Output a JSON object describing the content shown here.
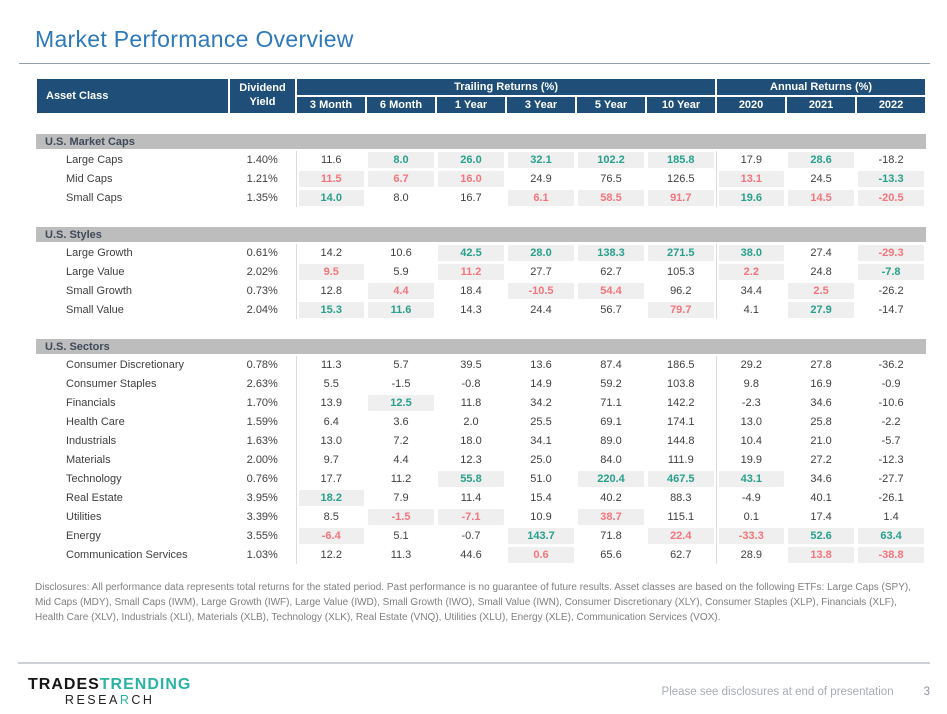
{
  "title": "Market Performance Overview",
  "table": {
    "header": {
      "asset_class": "Asset Class",
      "dividend_yield": "Dividend Yield",
      "trailing_group": "Trailing Returns (%)",
      "annual_group": "Annual Returns (%)",
      "cols": [
        "3 Month",
        "6 Month",
        "1 Year",
        "3 Year",
        "5 Year",
        "10 Year",
        "2020",
        "2021",
        "2022"
      ]
    },
    "legend": {
      "highlight_bg": "#EFEFEF",
      "positive_color": "#27A08C",
      "negative_color": "#F4757D",
      "header_bg": "#1F4E78",
      "section_bg": "#BDBDBD"
    },
    "sections": [
      {
        "name": "U.S. Market Caps",
        "rows": [
          {
            "label": "Large Caps",
            "yield": "1.40%",
            "cells": [
              [
                "11.6",
                "k",
                0
              ],
              [
                "8.0",
                "g",
                1
              ],
              [
                "26.0",
                "g",
                1
              ],
              [
                "32.1",
                "g",
                1
              ],
              [
                "102.2",
                "g",
                1
              ],
              [
                "185.8",
                "g",
                1
              ],
              [
                "17.9",
                "k",
                0
              ],
              [
                "28.6",
                "g",
                1
              ],
              [
                "-18.2",
                "k",
                0
              ]
            ]
          },
          {
            "label": "Mid Caps",
            "yield": "1.21%",
            "cells": [
              [
                "11.5",
                "r",
                1
              ],
              [
                "6.7",
                "r",
                1
              ],
              [
                "16.0",
                "r",
                1
              ],
              [
                "24.9",
                "k",
                0
              ],
              [
                "76.5",
                "k",
                0
              ],
              [
                "126.5",
                "k",
                0
              ],
              [
                "13.1",
                "r",
                1
              ],
              [
                "24.5",
                "k",
                0
              ],
              [
                "-13.3",
                "g",
                1
              ]
            ]
          },
          {
            "label": "Small Caps",
            "yield": "1.35%",
            "cells": [
              [
                "14.0",
                "g",
                1
              ],
              [
                "8.0",
                "k",
                0
              ],
              [
                "16.7",
                "k",
                0
              ],
              [
                "6.1",
                "r",
                1
              ],
              [
                "58.5",
                "r",
                1
              ],
              [
                "91.7",
                "r",
                1
              ],
              [
                "19.6",
                "g",
                1
              ],
              [
                "14.5",
                "r",
                1
              ],
              [
                "-20.5",
                "r",
                1
              ]
            ]
          }
        ]
      },
      {
        "name": "U.S. Styles",
        "rows": [
          {
            "label": "Large Growth",
            "yield": "0.61%",
            "cells": [
              [
                "14.2",
                "k",
                0
              ],
              [
                "10.6",
                "k",
                0
              ],
              [
                "42.5",
                "g",
                1
              ],
              [
                "28.0",
                "g",
                1
              ],
              [
                "138.3",
                "g",
                1
              ],
              [
                "271.5",
                "g",
                1
              ],
              [
                "38.0",
                "g",
                1
              ],
              [
                "27.4",
                "k",
                0
              ],
              [
                "-29.3",
                "r",
                1
              ]
            ]
          },
          {
            "label": "Large Value",
            "yield": "2.02%",
            "cells": [
              [
                "9.5",
                "r",
                1
              ],
              [
                "5.9",
                "k",
                0
              ],
              [
                "11.2",
                "r",
                1
              ],
              [
                "27.7",
                "k",
                0
              ],
              [
                "62.7",
                "k",
                0
              ],
              [
                "105.3",
                "k",
                0
              ],
              [
                "2.2",
                "r",
                1
              ],
              [
                "24.8",
                "k",
                0
              ],
              [
                "-7.8",
                "g",
                1
              ]
            ]
          },
          {
            "label": "Small Growth",
            "yield": "0.73%",
            "cells": [
              [
                "12.8",
                "k",
                0
              ],
              [
                "4.4",
                "r",
                1
              ],
              [
                "18.4",
                "k",
                0
              ],
              [
                "-10.5",
                "r",
                1
              ],
              [
                "54.4",
                "r",
                1
              ],
              [
                "96.2",
                "k",
                0
              ],
              [
                "34.4",
                "k",
                0
              ],
              [
                "2.5",
                "r",
                1
              ],
              [
                "-26.2",
                "k",
                0
              ]
            ]
          },
          {
            "label": "Small Value",
            "yield": "2.04%",
            "cells": [
              [
                "15.3",
                "g",
                1
              ],
              [
                "11.6",
                "g",
                1
              ],
              [
                "14.3",
                "k",
                0
              ],
              [
                "24.4",
                "k",
                0
              ],
              [
                "56.7",
                "k",
                0
              ],
              [
                "79.7",
                "r",
                1
              ],
              [
                "4.1",
                "k",
                0
              ],
              [
                "27.9",
                "g",
                1
              ],
              [
                "-14.7",
                "k",
                0
              ]
            ]
          }
        ]
      },
      {
        "name": "U.S. Sectors",
        "rows": [
          {
            "label": "Consumer Discretionary",
            "yield": "0.78%",
            "cells": [
              [
                "11.3",
                "k",
                0
              ],
              [
                "5.7",
                "k",
                0
              ],
              [
                "39.5",
                "k",
                0
              ],
              [
                "13.6",
                "k",
                0
              ],
              [
                "87.4",
                "k",
                0
              ],
              [
                "186.5",
                "k",
                0
              ],
              [
                "29.2",
                "k",
                0
              ],
              [
                "27.8",
                "k",
                0
              ],
              [
                "-36.2",
                "k",
                0
              ]
            ]
          },
          {
            "label": "Consumer Staples",
            "yield": "2.63%",
            "cells": [
              [
                "5.5",
                "k",
                0
              ],
              [
                "-1.5",
                "k",
                0
              ],
              [
                "-0.8",
                "k",
                0
              ],
              [
                "14.9",
                "k",
                0
              ],
              [
                "59.2",
                "k",
                0
              ],
              [
                "103.8",
                "k",
                0
              ],
              [
                "9.8",
                "k",
                0
              ],
              [
                "16.9",
                "k",
                0
              ],
              [
                "-0.9",
                "k",
                0
              ]
            ]
          },
          {
            "label": "Financials",
            "yield": "1.70%",
            "cells": [
              [
                "13.9",
                "k",
                0
              ],
              [
                "12.5",
                "g",
                1
              ],
              [
                "11.8",
                "k",
                0
              ],
              [
                "34.2",
                "k",
                0
              ],
              [
                "71.1",
                "k",
                0
              ],
              [
                "142.2",
                "k",
                0
              ],
              [
                "-2.3",
                "k",
                0
              ],
              [
                "34.6",
                "k",
                0
              ],
              [
                "-10.6",
                "k",
                0
              ]
            ]
          },
          {
            "label": "Health Care",
            "yield": "1.59%",
            "cells": [
              [
                "6.4",
                "k",
                0
              ],
              [
                "3.6",
                "k",
                0
              ],
              [
                "2.0",
                "k",
                0
              ],
              [
                "25.5",
                "k",
                0
              ],
              [
                "69.1",
                "k",
                0
              ],
              [
                "174.1",
                "k",
                0
              ],
              [
                "13.0",
                "k",
                0
              ],
              [
                "25.8",
                "k",
                0
              ],
              [
                "-2.2",
                "k",
                0
              ]
            ]
          },
          {
            "label": "Industrials",
            "yield": "1.63%",
            "cells": [
              [
                "13.0",
                "k",
                0
              ],
              [
                "7.2",
                "k",
                0
              ],
              [
                "18.0",
                "k",
                0
              ],
              [
                "34.1",
                "k",
                0
              ],
              [
                "89.0",
                "k",
                0
              ],
              [
                "144.8",
                "k",
                0
              ],
              [
                "10.4",
                "k",
                0
              ],
              [
                "21.0",
                "k",
                0
              ],
              [
                "-5.7",
                "k",
                0
              ]
            ]
          },
          {
            "label": "Materials",
            "yield": "2.00%",
            "cells": [
              [
                "9.7",
                "k",
                0
              ],
              [
                "4.4",
                "k",
                0
              ],
              [
                "12.3",
                "k",
                0
              ],
              [
                "25.0",
                "k",
                0
              ],
              [
                "84.0",
                "k",
                0
              ],
              [
                "111.9",
                "k",
                0
              ],
              [
                "19.9",
                "k",
                0
              ],
              [
                "27.2",
                "k",
                0
              ],
              [
                "-12.3",
                "k",
                0
              ]
            ]
          },
          {
            "label": "Technology",
            "yield": "0.76%",
            "cells": [
              [
                "17.7",
                "k",
                0
              ],
              [
                "11.2",
                "k",
                0
              ],
              [
                "55.8",
                "g",
                1
              ],
              [
                "51.0",
                "k",
                0
              ],
              [
                "220.4",
                "g",
                1
              ],
              [
                "467.5",
                "g",
                1
              ],
              [
                "43.1",
                "g",
                1
              ],
              [
                "34.6",
                "k",
                0
              ],
              [
                "-27.7",
                "k",
                0
              ]
            ]
          },
          {
            "label": "Real Estate",
            "yield": "3.95%",
            "cells": [
              [
                "18.2",
                "g",
                1
              ],
              [
                "7.9",
                "k",
                0
              ],
              [
                "11.4",
                "k",
                0
              ],
              [
                "15.4",
                "k",
                0
              ],
              [
                "40.2",
                "k",
                0
              ],
              [
                "88.3",
                "k",
                0
              ],
              [
                "-4.9",
                "k",
                0
              ],
              [
                "40.1",
                "k",
                0
              ],
              [
                "-26.1",
                "k",
                0
              ]
            ]
          },
          {
            "label": "Utilities",
            "yield": "3.39%",
            "cells": [
              [
                "8.5",
                "k",
                0
              ],
              [
                "-1.5",
                "r",
                1
              ],
              [
                "-7.1",
                "r",
                1
              ],
              [
                "10.9",
                "k",
                0
              ],
              [
                "38.7",
                "r",
                1
              ],
              [
                "115.1",
                "k",
                0
              ],
              [
                "0.1",
                "k",
                0
              ],
              [
                "17.4",
                "k",
                0
              ],
              [
                "1.4",
                "k",
                0
              ]
            ]
          },
          {
            "label": "Energy",
            "yield": "3.55%",
            "cells": [
              [
                "-6.4",
                "r",
                1
              ],
              [
                "5.1",
                "k",
                0
              ],
              [
                "-0.7",
                "k",
                0
              ],
              [
                "143.7",
                "g",
                1
              ],
              [
                "71.8",
                "k",
                0
              ],
              [
                "22.4",
                "r",
                1
              ],
              [
                "-33.3",
                "r",
                1
              ],
              [
                "52.6",
                "g",
                1
              ],
              [
                "63.4",
                "g",
                1
              ]
            ]
          },
          {
            "label": "Communication Services",
            "yield": "1.03%",
            "cells": [
              [
                "12.2",
                "k",
                0
              ],
              [
                "11.3",
                "k",
                0
              ],
              [
                "44.6",
                "k",
                0
              ],
              [
                "0.6",
                "r",
                1
              ],
              [
                "65.6",
                "k",
                0
              ],
              [
                "62.7",
                "k",
                0
              ],
              [
                "28.9",
                "k",
                0
              ],
              [
                "13.8",
                "r",
                1
              ],
              [
                "-38.8",
                "r",
                1
              ]
            ]
          }
        ]
      }
    ]
  },
  "disclosures": "Disclosures: All performance data represents total returns for the stated period. Past performance is no guarantee of future results. Asset classes are based on the following ETFs: Large Caps (SPY), Mid Caps (MDY), Small Caps (IWM), Large Growth (IWF), Large Value (IWD), Small Growth (IWO), Small Value (IWN), Consumer Discretionary (XLY), Consumer Staples (XLP), Financials (XLF), Health Care (XLV), Industrials (XLI), Materials (XLB), Technology (XLK), Real Estate (VNQ), Utilities (XLU), Energy (XLE), Communication Services (VOX).",
  "footer": {
    "logo": {
      "part1": "TRADES",
      "part2": "TRENDING",
      "part3": "RESEA",
      "part4": "R",
      "part5": "CH"
    },
    "note": "Please see disclosures at end of presentation",
    "page_number": "3"
  }
}
